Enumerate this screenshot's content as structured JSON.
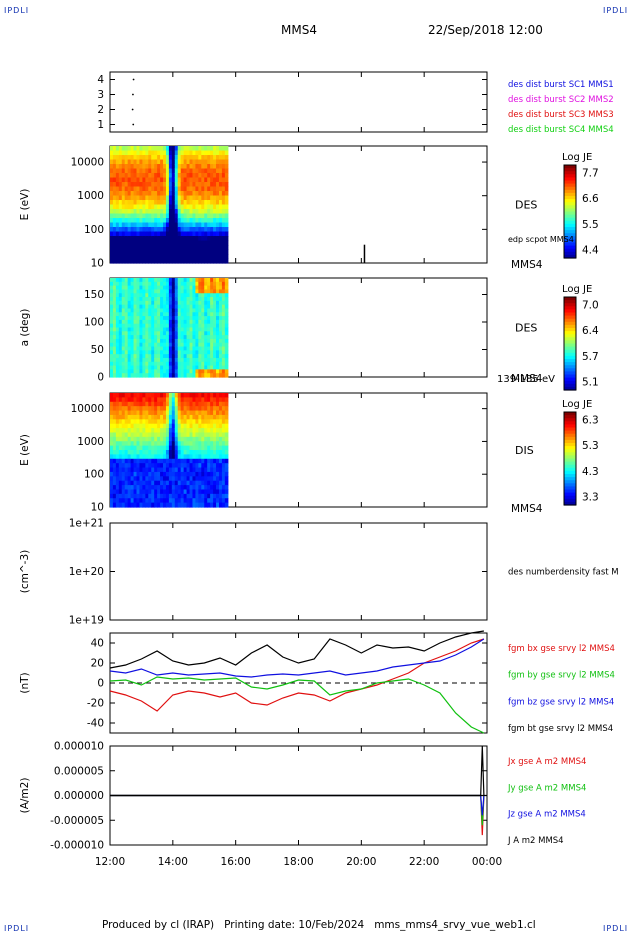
{
  "corners": {
    "top_left": "IPDLI",
    "top_right": "IPDLI",
    "bottom_left": "IPDLI",
    "bottom_right": "IPDLI"
  },
  "header": {
    "spacecraft": "MMS4",
    "date": "22/Sep/2018 12:00"
  },
  "footer": {
    "producer": "Produced by cl (IRAP)",
    "printing": "Printing date: 10/Feb/2024",
    "filename": "mms_mms4_srvy_vue_web1.cl"
  },
  "x_axis": {
    "ticks": [
      "12:00",
      "14:00",
      "16:00",
      "18:00",
      "20:00",
      "22:00",
      "00:00"
    ],
    "range_hours": [
      12,
      24
    ]
  },
  "chart_data": [
    {
      "type": "scatter",
      "title": "",
      "ylabel": "",
      "yticks": [
        "1",
        "2",
        "3",
        "4"
      ],
      "ylim": [
        0.5,
        4.5
      ],
      "series": [
        {
          "name": "des dist burst SC1 MMS1",
          "color": "#1010e0",
          "x": [
            12.75
          ],
          "y": [
            4
          ]
        },
        {
          "name": "des dist burst SC2 MMS2",
          "color": "#e010e0",
          "x": [
            12.73
          ],
          "y": [
            3
          ]
        },
        {
          "name": "des dist burst SC3 MMS3",
          "color": "#e01010",
          "x": [
            12.72
          ],
          "y": [
            2
          ]
        },
        {
          "name": "des dist burst SC4 MMS4",
          "color": "#10d010",
          "x": [
            12.74
          ],
          "y": [
            1
          ]
        }
      ]
    },
    {
      "type": "heatmap",
      "ylabel": "E (eV)",
      "yscale": "log",
      "yticks": [
        "10",
        "100",
        "1000",
        "10000"
      ],
      "ylim": [
        10,
        30000
      ],
      "right_label": "DES",
      "overlay_label": "edp scpot MMS4",
      "bottom_label": "MMS4",
      "colorbar": {
        "title": "Log JE",
        "ticks": [
          "7.7",
          "6.6",
          "5.5",
          "4.4"
        ],
        "range": [
          4.4,
          7.7
        ]
      },
      "data_extent_hours": [
        12,
        15.75
      ],
      "overlay_spike": {
        "x": 20.1,
        "y_max": 35
      }
    },
    {
      "type": "heatmap",
      "ylabel": "a (deg)",
      "yticks": [
        "0",
        "50",
        "100",
        "150"
      ],
      "ylim": [
        0,
        180
      ],
      "right_label": "DES",
      "bottom_label": "MMS4",
      "energy_label": "139-185 eV",
      "colorbar": {
        "title": "Log JE",
        "ticks": [
          "7.0",
          "6.4",
          "5.7",
          "5.1"
        ],
        "range": [
          5.1,
          7.0
        ]
      },
      "data_extent_hours": [
        12,
        15.75
      ]
    },
    {
      "type": "heatmap",
      "ylabel": "E (eV)",
      "yscale": "log",
      "yticks": [
        "10",
        "100",
        "1000",
        "10000"
      ],
      "ylim": [
        10,
        30000
      ],
      "right_label": "DIS",
      "bottom_label": "MMS4",
      "colorbar": {
        "title": "Log JE",
        "ticks": [
          "6.3",
          "5.3",
          "4.3",
          "3.3"
        ],
        "range": [
          3.3,
          6.3
        ]
      },
      "data_extent_hours": [
        12,
        15.75
      ]
    },
    {
      "type": "line",
      "ylabel": "(cm^-3)",
      "yscale": "log",
      "yticks": [
        "1e+19",
        "1e+20",
        "1e+21"
      ],
      "ylim": [
        1e+19,
        1e+21
      ],
      "series": [
        {
          "name": "des numberdensity fast M",
          "color": "#000000",
          "x": [],
          "y": []
        }
      ]
    },
    {
      "type": "line",
      "ylabel": "(nT)",
      "yticks": [
        "-40",
        "-20",
        "0",
        "20",
        "40"
      ],
      "ylim": [
        -50,
        50
      ],
      "zero_line": true,
      "series": [
        {
          "name": "fgm bx gse srvy l2 MMS4",
          "color": "#e01010",
          "x": [
            12,
            12.5,
            13,
            13.5,
            14,
            14.5,
            15,
            15.5,
            16,
            16.5,
            17,
            17.5,
            18,
            18.5,
            19,
            19.5,
            20,
            20.5,
            21,
            21.5,
            22,
            22.5,
            23,
            23.5,
            23.9
          ],
          "y": [
            -8,
            -12,
            -18,
            -28,
            -12,
            -8,
            -10,
            -14,
            -10,
            -20,
            -22,
            -15,
            -10,
            -12,
            -18,
            -10,
            -6,
            -2,
            4,
            10,
            20,
            26,
            32,
            40,
            44
          ]
        },
        {
          "name": "fgm by gse srvy l2 MMS4",
          "color": "#10c010",
          "x": [
            12,
            12.5,
            13,
            13.5,
            14,
            14.5,
            15,
            15.5,
            16,
            16.5,
            17,
            17.5,
            18,
            18.5,
            19,
            19.5,
            20,
            20.5,
            21,
            21.5,
            22,
            22.5,
            23,
            23.5,
            23.9
          ],
          "y": [
            2,
            3,
            -2,
            6,
            4,
            5,
            3,
            4,
            5,
            -4,
            -6,
            -2,
            3,
            2,
            -12,
            -8,
            -6,
            0,
            2,
            4,
            -2,
            -10,
            -30,
            -44,
            -50
          ]
        },
        {
          "name": "fgm bz gse srvy l2 MMS4",
          "color": "#1010e0",
          "x": [
            12,
            12.5,
            13,
            13.5,
            14,
            14.5,
            15,
            15.5,
            16,
            16.5,
            17,
            17.5,
            18,
            18.5,
            19,
            19.5,
            20,
            20.5,
            21,
            21.5,
            22,
            22.5,
            23,
            23.5,
            23.9
          ],
          "y": [
            12,
            10,
            14,
            8,
            10,
            8,
            9,
            10,
            7,
            6,
            8,
            9,
            8,
            10,
            12,
            8,
            10,
            12,
            16,
            18,
            20,
            22,
            28,
            36,
            44
          ]
        },
        {
          "name": "fgm bt gse srvy l2 MMS4",
          "color": "#000000",
          "x": [
            12,
            12.5,
            13,
            13.5,
            14,
            14.5,
            15,
            15.5,
            16,
            16.5,
            17,
            17.5,
            18,
            18.5,
            19,
            19.5,
            20,
            20.5,
            21,
            21.5,
            22,
            22.5,
            23,
            23.5,
            23.9
          ],
          "y": [
            15,
            18,
            24,
            32,
            22,
            18,
            20,
            25,
            18,
            30,
            38,
            26,
            20,
            24,
            44,
            38,
            30,
            38,
            35,
            36,
            32,
            40,
            46,
            50,
            52
          ]
        }
      ]
    },
    {
      "type": "line",
      "ylabel": "(A/m2)",
      "yticks": [
        "-0.000010",
        "-0.000005",
        "0.000000",
        "0.000005",
        "0.000010"
      ],
      "ylim": [
        -1e-05,
        1e-05
      ],
      "series": [
        {
          "name": "Jx gse A m2 MMS4",
          "color": "#e01010",
          "x": [
            12,
            23.8,
            23.85,
            23.9
          ],
          "y": [
            0,
            0,
            -8e-06,
            0
          ]
        },
        {
          "name": "Jy gse A m2 MMS4",
          "color": "#10c010",
          "x": [
            12,
            23.8,
            23.85,
            23.9
          ],
          "y": [
            0,
            0,
            -6e-06,
            0
          ]
        },
        {
          "name": "Jz gse A m2 MMS4",
          "color": "#1010e0",
          "x": [
            12,
            23.8,
            23.85,
            23.9
          ],
          "y": [
            0,
            0,
            -4e-06,
            0
          ]
        },
        {
          "name": "J A m2 MMS4",
          "color": "#000000",
          "x": [
            12,
            23.8,
            23.85,
            23.9
          ],
          "y": [
            0,
            0,
            1e-05,
            0
          ]
        }
      ]
    }
  ]
}
